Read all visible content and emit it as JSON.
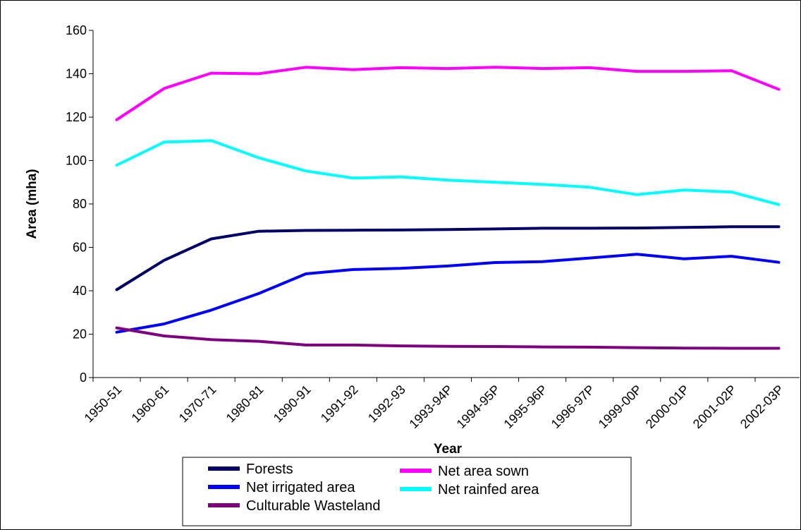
{
  "chart_data": {
    "type": "line",
    "xlabel": "Year",
    "ylabel": "Area (mha)",
    "ylim": [
      0,
      160
    ],
    "yticks": [
      0,
      20,
      40,
      60,
      80,
      100,
      120,
      140,
      160
    ],
    "grid": false,
    "legend_position": "bottom",
    "categories": [
      "1950-51",
      "1960-61",
      "1970-71",
      "1980-81",
      "1990-91",
      "1991-92",
      "1992-93",
      "1993-94P",
      "1994-95P",
      "1995-96P",
      "1996-97P",
      "1999-00P",
      "2000-01P",
      "2001-02P",
      "2002-03P"
    ],
    "series": [
      {
        "name": "Forests",
        "color": "#000066",
        "values": [
          40.5,
          54.0,
          63.9,
          67.4,
          67.8,
          67.9,
          68.0,
          68.2,
          68.5,
          68.8,
          68.8,
          68.9,
          69.2,
          69.5,
          69.5
        ]
      },
      {
        "name": "Net irrigated area",
        "color": "#0000ff",
        "values": [
          20.9,
          24.7,
          31.1,
          38.7,
          47.8,
          49.8,
          50.3,
          51.4,
          53.0,
          53.4,
          55.1,
          56.8,
          54.7,
          55.9,
          53.1
        ]
      },
      {
        "name": "Culturable Wasteland",
        "color": "#7f007f",
        "values": [
          22.9,
          19.2,
          17.5,
          16.7,
          15.0,
          15.0,
          14.6,
          14.4,
          14.3,
          14.1,
          14.0,
          13.8,
          13.6,
          13.5,
          13.5
        ]
      },
      {
        "name": "Net area sown",
        "color": "#ff00ff",
        "values": [
          118.8,
          133.2,
          140.3,
          140.0,
          143.0,
          141.9,
          142.8,
          142.4,
          143.0,
          142.4,
          142.8,
          141.1,
          141.1,
          141.4,
          132.8
        ]
      },
      {
        "name": "Net rainfed area",
        "color": "#00ffff",
        "values": [
          97.9,
          108.5,
          109.2,
          101.3,
          95.2,
          91.9,
          92.5,
          91.0,
          90.0,
          89.0,
          87.7,
          84.3,
          86.4,
          85.5,
          79.7
        ]
      }
    ]
  }
}
